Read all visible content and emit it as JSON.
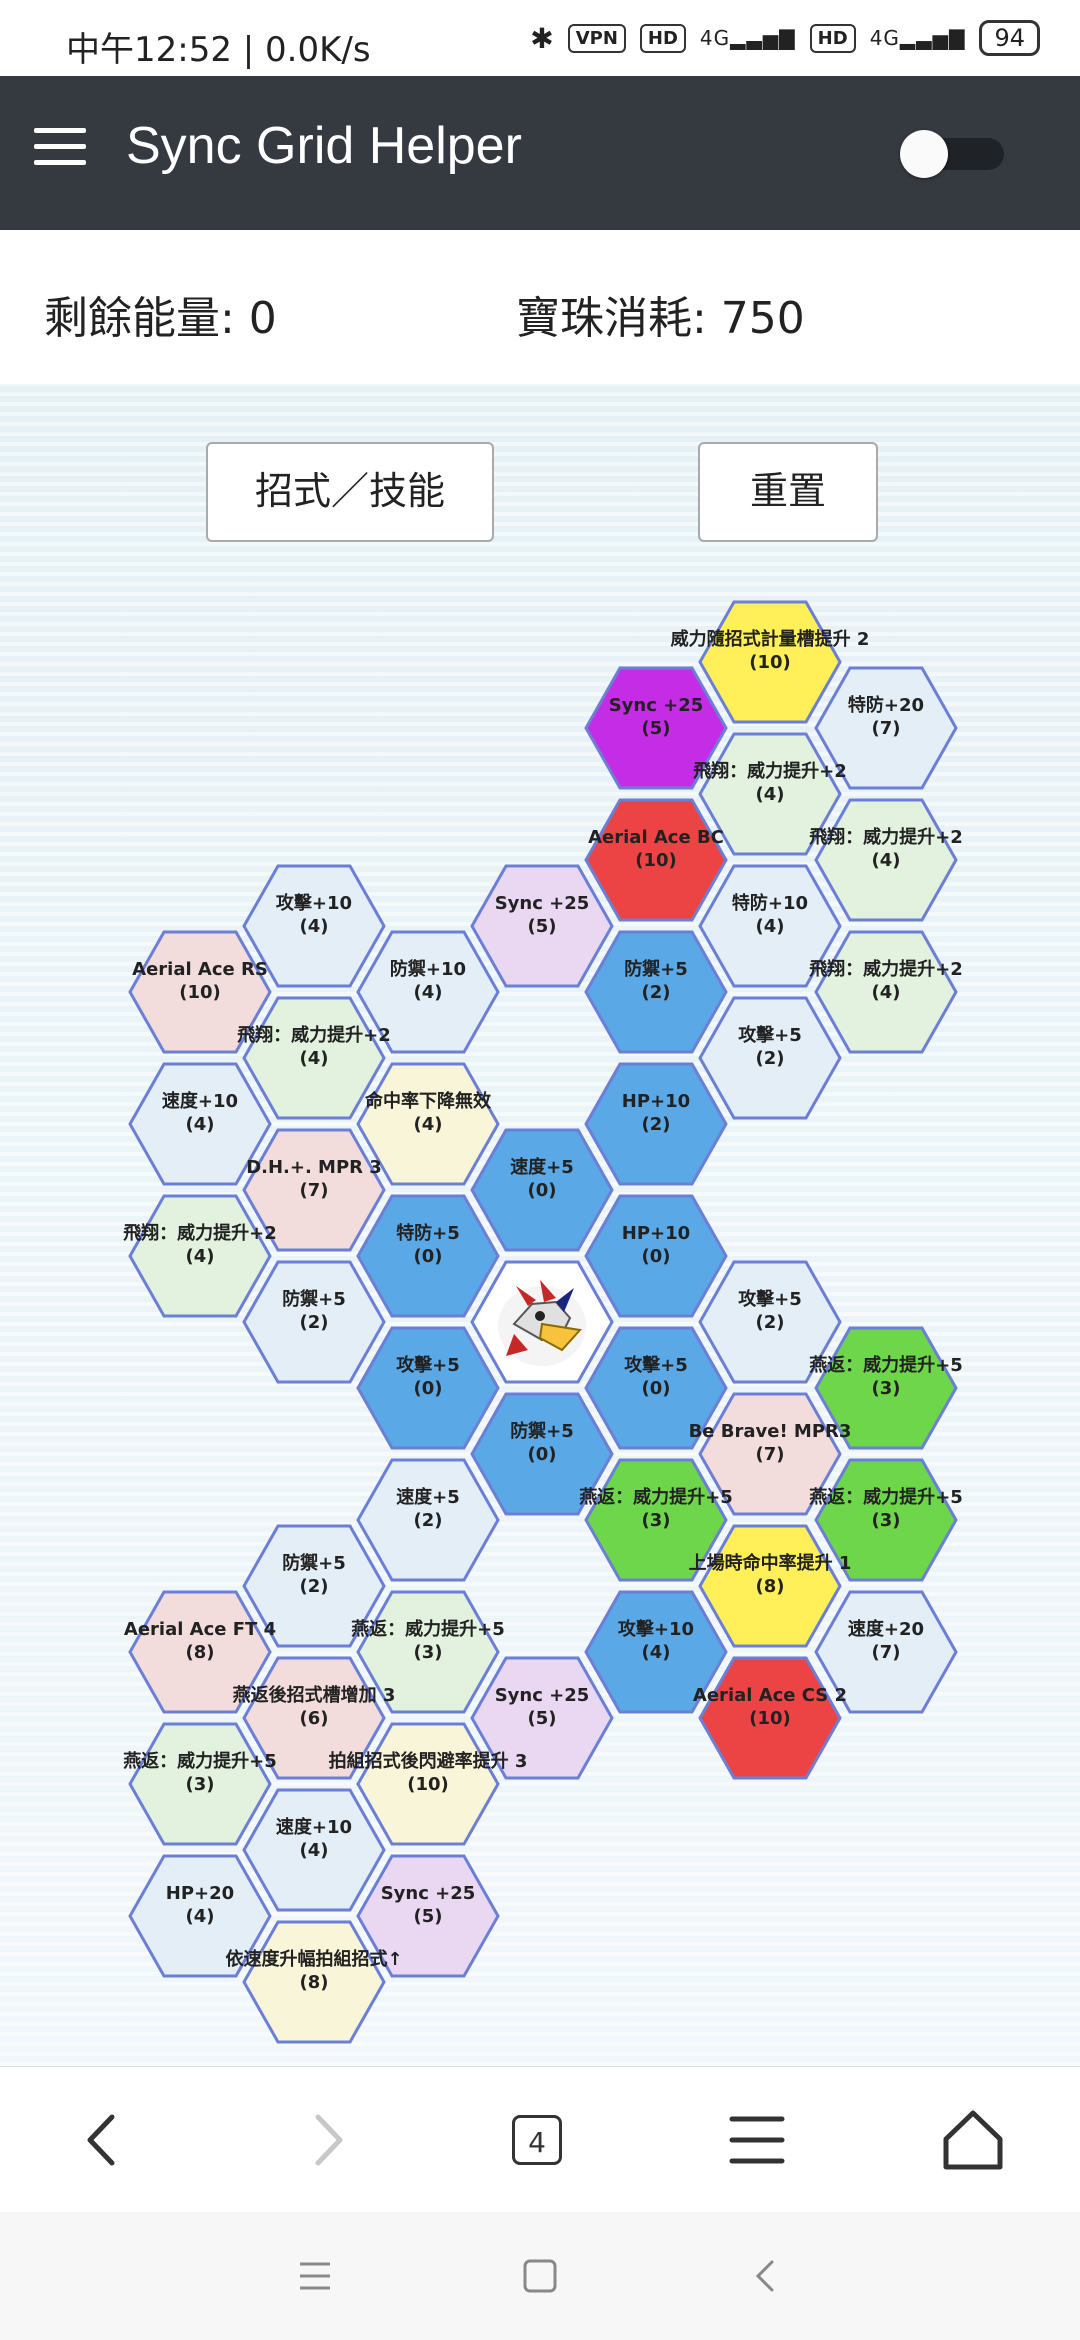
{
  "status_bar": {
    "time": "中午12:52 | 0.0K/s",
    "vpn": "VPN",
    "hd": "HD",
    "network": "4G",
    "battery": "94",
    "icons": [
      "bluetooth-icon",
      "vpn-icon",
      "hd-icon",
      "signal-icon",
      "hd-icon",
      "signal-icon",
      "battery-icon"
    ]
  },
  "app_bar": {
    "title": "Sync Grid Helper",
    "menu_icon": "hamburger-menu-icon",
    "toggle_on": false
  },
  "summary": {
    "energy": "剩餘能量: 0",
    "cost": "寶珠消耗: 750"
  },
  "buttons": {
    "moves": "招式／技能",
    "reset": "重置"
  },
  "grid": {
    "center_pokemon": "pokemon-portrait",
    "cells": [
      {
        "label": "威力隨招式計量槽提升 2",
        "cost": "(10)",
        "color": "#fff05a",
        "active": true
      },
      {
        "label": "Sync +25",
        "cost": "(5)",
        "color": "#c52ce6",
        "active": true
      },
      {
        "label": "特防+20",
        "cost": "(7)",
        "color": "#e3eef7",
        "active": false
      },
      {
        "label": "飛翔：威力提升+2",
        "cost": "(4)",
        "color": "#e2f2de",
        "active": false
      },
      {
        "label": "Aerial Ace BC",
        "cost": "(10)",
        "color": "#ec4444",
        "active": true
      },
      {
        "label": "飛翔：威力提升+2",
        "cost": "(4)",
        "color": "#e2f2de",
        "active": false
      },
      {
        "label": "Sync +25",
        "cost": "(5)",
        "color": "#ead8f3",
        "active": false
      },
      {
        "label": "特防+10",
        "cost": "(4)",
        "color": "#e3eef7",
        "active": false
      },
      {
        "label": "攻擊+10",
        "cost": "(4)",
        "color": "#e3eef7",
        "active": false
      },
      {
        "label": "防禦+5",
        "cost": "(2)",
        "color": "#5ba8e6",
        "active": true
      },
      {
        "label": "飛翔：威力提升+2",
        "cost": "(4)",
        "color": "#e2f2de",
        "active": false
      },
      {
        "label": "Aerial Ace RS",
        "cost": "(10)",
        "color": "#f3dcdc",
        "active": false
      },
      {
        "label": "防禦+10",
        "cost": "(4)",
        "color": "#e3eef7",
        "active": false
      },
      {
        "label": "攻擊+5",
        "cost": "(2)",
        "color": "#e3eef7",
        "active": false
      },
      {
        "label": "飛翔：威力提升+2",
        "cost": "(4)",
        "color": "#e2f2de",
        "active": false
      },
      {
        "label": "HP+10",
        "cost": "(2)",
        "color": "#5ba8e6",
        "active": true
      },
      {
        "label": "速度+10",
        "cost": "(4)",
        "color": "#e3eef7",
        "active": false
      },
      {
        "label": "命中率下降無效",
        "cost": "(4)",
        "color": "#f8f5d8",
        "active": false
      },
      {
        "label": "速度+5",
        "cost": "(0)",
        "color": "#5ba8e6",
        "active": true
      },
      {
        "label": "D.H.+. MPR 3",
        "cost": "(7)",
        "color": "#f3dcdc",
        "active": false
      },
      {
        "label": "HP+10",
        "cost": "(0)",
        "color": "#5ba8e6",
        "active": true
      },
      {
        "label": "特防+5",
        "cost": "(0)",
        "color": "#5ba8e6",
        "active": true
      },
      {
        "label": "飛翔：威力提升+2",
        "cost": "(4)",
        "color": "#e2f2de",
        "active": false
      },
      {
        "label": "攻擊+5",
        "cost": "(2)",
        "color": "#e3eef7",
        "active": false
      },
      {
        "label": "防禦+5",
        "cost": "(2)",
        "color": "#e3eef7",
        "active": false
      },
      {
        "label": "",
        "cost": "",
        "color": "#ffffff",
        "active": true,
        "center": true
      },
      {
        "label": "燕返：威力提升+5",
        "cost": "(3)",
        "color": "#6dd64a",
        "active": true
      },
      {
        "label": "攻擊+5",
        "cost": "(0)",
        "color": "#5ba8e6",
        "active": true
      },
      {
        "label": "攻擊+5",
        "cost": "(0)",
        "color": "#5ba8e6",
        "active": true
      },
      {
        "label": "Be Brave! MPR3",
        "cost": "(7)",
        "color": "#f3dcdc",
        "active": false
      },
      {
        "label": "防禦+5",
        "cost": "(0)",
        "color": "#5ba8e6",
        "active": true
      },
      {
        "label": "燕返：威力提升+5",
        "cost": "(3)",
        "color": "#6dd64a",
        "active": true
      },
      {
        "label": "燕返：威力提升+5",
        "cost": "(3)",
        "color": "#6dd64a",
        "active": true
      },
      {
        "label": "速度+5",
        "cost": "(2)",
        "color": "#e3eef7",
        "active": false
      },
      {
        "label": "上場時命中率提升 1",
        "cost": "(8)",
        "color": "#fff05a",
        "active": true
      },
      {
        "label": "防禦+5",
        "cost": "(2)",
        "color": "#e3eef7",
        "active": false
      },
      {
        "label": "Aerial Ace FT 4",
        "cost": "(8)",
        "color": "#f3dcdc",
        "active": false
      },
      {
        "label": "燕返：威力提升+5",
        "cost": "(3)",
        "color": "#e2f2de",
        "active": false
      },
      {
        "label": "攻擊+10",
        "cost": "(4)",
        "color": "#5ba8e6",
        "active": true
      },
      {
        "label": "速度+20",
        "cost": "(7)",
        "color": "#e3eef7",
        "active": false
      },
      {
        "label": "燕返後招式槽增加 3",
        "cost": "(6)",
        "color": "#f3dcdc",
        "active": false
      },
      {
        "label": "Sync +25",
        "cost": "(5)",
        "color": "#ead8f3",
        "active": false
      },
      {
        "label": "Aerial Ace CS 2",
        "cost": "(10)",
        "color": "#ec4444",
        "active": true
      },
      {
        "label": "燕返：威力提升+5",
        "cost": "(3)",
        "color": "#e2f2de",
        "active": false
      },
      {
        "label": "拍組招式後閃避率提升 3",
        "cost": "(10)",
        "color": "#f8f5d8",
        "active": false
      },
      {
        "label": "速度+10",
        "cost": "(4)",
        "color": "#e3eef7",
        "active": false
      },
      {
        "label": "HP+20",
        "cost": "(4)",
        "color": "#e3eef7",
        "active": false
      },
      {
        "label": "Sync +25",
        "cost": "(5)",
        "color": "#ead8f3",
        "active": false
      },
      {
        "label": "依速度升幅拍組招式↑",
        "cost": "(8)",
        "color": "#f8f5d8",
        "active": false
      }
    ]
  },
  "browser_nav": {
    "tab_count": "4",
    "icons": [
      "back-arrow-icon",
      "forward-arrow-icon",
      "tabs-icon",
      "menu-icon",
      "home-icon"
    ]
  },
  "system_nav": {
    "icons": [
      "recents-icon",
      "home-square-icon",
      "back-icon"
    ]
  }
}
